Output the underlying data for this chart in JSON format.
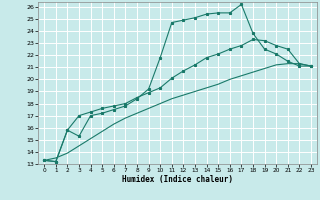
{
  "xlabel": "Humidex (Indice chaleur)",
  "background_color": "#c8eaea",
  "grid_color": "#ffffff",
  "line_color": "#1a7a6a",
  "xlim": [
    -0.5,
    23.5
  ],
  "ylim": [
    13,
    26.4
  ],
  "xticks": [
    0,
    1,
    2,
    3,
    4,
    5,
    6,
    7,
    8,
    9,
    10,
    11,
    12,
    13,
    14,
    15,
    16,
    17,
    18,
    19,
    20,
    21,
    22,
    23
  ],
  "yticks": [
    13,
    14,
    15,
    16,
    17,
    18,
    19,
    20,
    21,
    22,
    23,
    24,
    25,
    26
  ],
  "line1_x": [
    0,
    1,
    2,
    3,
    4,
    5,
    6,
    7,
    8,
    9,
    10,
    11,
    12,
    13,
    14,
    15,
    16,
    17,
    18,
    19,
    20,
    21,
    22,
    23
  ],
  "line1_y": [
    13.3,
    13.2,
    15.8,
    15.3,
    17.0,
    17.2,
    17.5,
    17.8,
    18.4,
    19.2,
    21.8,
    24.7,
    24.9,
    25.1,
    25.4,
    25.5,
    25.5,
    26.2,
    23.8,
    22.5,
    22.1,
    21.5,
    21.1,
    21.1
  ],
  "line2_x": [
    0,
    1,
    2,
    3,
    4,
    5,
    6,
    7,
    8,
    9,
    10,
    11,
    12,
    13,
    14,
    15,
    16,
    17,
    18,
    19,
    20,
    21,
    22,
    23
  ],
  "line2_y": [
    13.3,
    13.2,
    15.8,
    17.0,
    17.3,
    17.6,
    17.8,
    18.0,
    18.5,
    18.9,
    19.3,
    20.1,
    20.7,
    21.2,
    21.8,
    22.1,
    22.5,
    22.8,
    23.3,
    23.2,
    22.8,
    22.5,
    21.3,
    21.1
  ],
  "line3_x": [
    0,
    1,
    2,
    3,
    4,
    5,
    6,
    7,
    8,
    9,
    10,
    11,
    12,
    13,
    14,
    15,
    16,
    17,
    18,
    19,
    20,
    21,
    22,
    23
  ],
  "line3_y": [
    13.3,
    13.5,
    13.9,
    14.5,
    15.1,
    15.7,
    16.3,
    16.8,
    17.2,
    17.6,
    18.0,
    18.4,
    18.7,
    19.0,
    19.3,
    19.6,
    20.0,
    20.3,
    20.6,
    20.9,
    21.2,
    21.3,
    21.3,
    21.1
  ]
}
